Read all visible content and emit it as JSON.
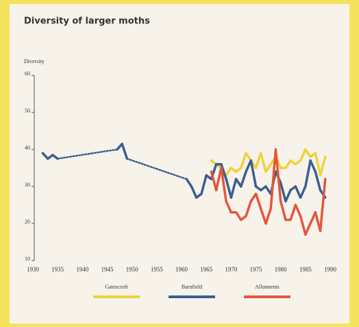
{
  "chart_data": {
    "type": "line",
    "title": "Diversity of larger moths",
    "y_label": "Diversity",
    "xlim": [
      1930,
      1990
    ],
    "xticks": [
      1930,
      1935,
      1940,
      1945,
      1950,
      1955,
      1960,
      1965,
      1970,
      1975,
      1980,
      1985,
      1990
    ],
    "ylim": [
      10,
      60
    ],
    "yticks": [
      10,
      20,
      30,
      40,
      50,
      60
    ],
    "series": [
      {
        "name": "Gatescroft",
        "color": "#efd23e",
        "x": [
          1966,
          1967,
          1968,
          1969,
          1970,
          1971,
          1972,
          1973,
          1974,
          1975,
          1976,
          1977,
          1978,
          1979,
          1980,
          1981,
          1982,
          1983,
          1984,
          1985,
          1986,
          1987,
          1988,
          1989
        ],
        "values": [
          37,
          36,
          35,
          33,
          35,
          34,
          35,
          39,
          37,
          35,
          39,
          34,
          36,
          38,
          35,
          35,
          37,
          36,
          37,
          40,
          38,
          39,
          33,
          38
        ]
      },
      {
        "name": "Barnfield",
        "color": "#3b5e93",
        "x": [
          1932,
          1933,
          1934,
          1935,
          1947,
          1948,
          1949,
          1961,
          1962,
          1963,
          1964,
          1965,
          1966,
          1967,
          1968,
          1969,
          1970,
          1971,
          1972,
          1973,
          1974,
          1975,
          1976,
          1977,
          1978,
          1979,
          1980,
          1981,
          1982,
          1983,
          1984,
          1985,
          1986,
          1987,
          1988,
          1989
        ],
        "values": [
          39,
          37.5,
          38.5,
          37.5,
          40,
          41.5,
          37.5,
          32,
          30,
          27,
          28,
          33,
          32,
          36,
          36,
          32,
          27,
          32,
          30,
          34,
          37,
          30,
          29,
          30,
          28,
          34,
          31,
          26,
          29,
          30,
          27,
          30,
          37,
          34,
          29,
          27
        ]
      },
      {
        "name": "Allotments",
        "color": "#e2573b",
        "x": [
          1966,
          1967,
          1968,
          1969,
          1970,
          1971,
          1972,
          1973,
          1974,
          1975,
          1976,
          1977,
          1978,
          1979,
          1980,
          1981,
          1982,
          1983,
          1984,
          1985,
          1986,
          1987,
          1988,
          1989
        ],
        "values": [
          34,
          29,
          35,
          26,
          23,
          23,
          21,
          22,
          26,
          28,
          24,
          20,
          24,
          40,
          26,
          21,
          21,
          25,
          22,
          17,
          20,
          23,
          18,
          32
        ]
      }
    ]
  }
}
